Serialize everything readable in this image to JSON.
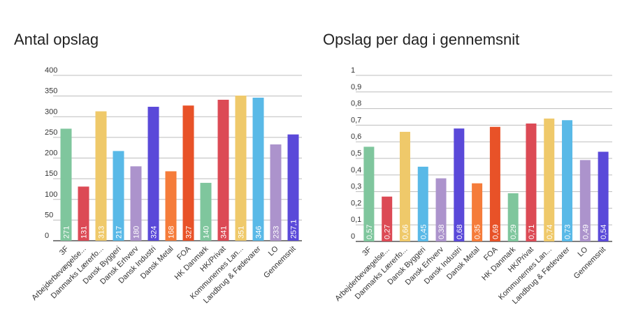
{
  "chart_data": [
    {
      "type": "bar",
      "title": "Antal opslag",
      "ylim": [
        0,
        400
      ],
      "yticks": [
        "0",
        "50",
        "100",
        "150",
        "200",
        "250",
        "300",
        "350",
        "400"
      ],
      "categories": [
        "3F",
        "Arbejderbevægelse...",
        "Danmarks Lærerfo...",
        "Dansk Byggeri",
        "Dansk Erhverv",
        "Dansk Industri",
        "Dansk Metal",
        "FOA",
        "HK Danmark",
        "HK/Privat",
        "Kommunernes Lan...",
        "Landbrug & Fødevarer",
        "LO",
        "Gennemsnit"
      ],
      "values": [
        271,
        131,
        313,
        217,
        180,
        324,
        168,
        327,
        140,
        341,
        351,
        346,
        233,
        257.1
      ],
      "data_labels": [
        "271",
        "131",
        "313",
        "217",
        "180",
        "324",
        "168",
        "327",
        "140",
        "341",
        "351",
        "346",
        "233",
        "257,1"
      ],
      "colors": [
        "#7fc69d",
        "#dc4a55",
        "#efc96a",
        "#59b9e7",
        "#ac93cc",
        "#5a49d9",
        "#f57c3a",
        "#e85228",
        "#7fc69d",
        "#dc4a55",
        "#efc96a",
        "#59b9e7",
        "#ac93cc",
        "#5a49d9"
      ],
      "grid": true,
      "legend": "none"
    },
    {
      "type": "bar",
      "title": "Opslag per dag i gennemsnit",
      "ylim": [
        0,
        1
      ],
      "yticks": [
        "0",
        "0,1",
        "0,2",
        "0,3",
        "0,4",
        "0,5",
        "0,6",
        "0,7",
        "0,8",
        "0,9",
        "1"
      ],
      "categories": [
        "3F",
        "Arbejderbevægelse...",
        "Danmarks Lærerfo...",
        "Dansk Byggeri",
        "Dansk Erhverv",
        "Dansk Industri",
        "Dansk Metal",
        "FOA",
        "HK Danmark",
        "HK/Privat",
        "Kommunernes Lan...",
        "Landbrug & Fødevarer",
        "LO",
        "Gennemsnit"
      ],
      "values": [
        0.57,
        0.27,
        0.66,
        0.45,
        0.38,
        0.68,
        0.35,
        0.69,
        0.29,
        0.71,
        0.74,
        0.73,
        0.49,
        0.54
      ],
      "data_labels": [
        "0,57",
        "0,27",
        "0,66",
        "0,45",
        "0,38",
        "0,68",
        "0,35",
        "0,69",
        "0,29",
        "0,71",
        "0,74",
        "0,73",
        "0,49",
        "0,54"
      ],
      "colors": [
        "#7fc69d",
        "#dc4a55",
        "#efc96a",
        "#59b9e7",
        "#ac93cc",
        "#5a49d9",
        "#f57c3a",
        "#e85228",
        "#7fc69d",
        "#dc4a55",
        "#efc96a",
        "#59b9e7",
        "#ac93cc",
        "#5a49d9"
      ],
      "grid": true,
      "legend": "none"
    }
  ]
}
